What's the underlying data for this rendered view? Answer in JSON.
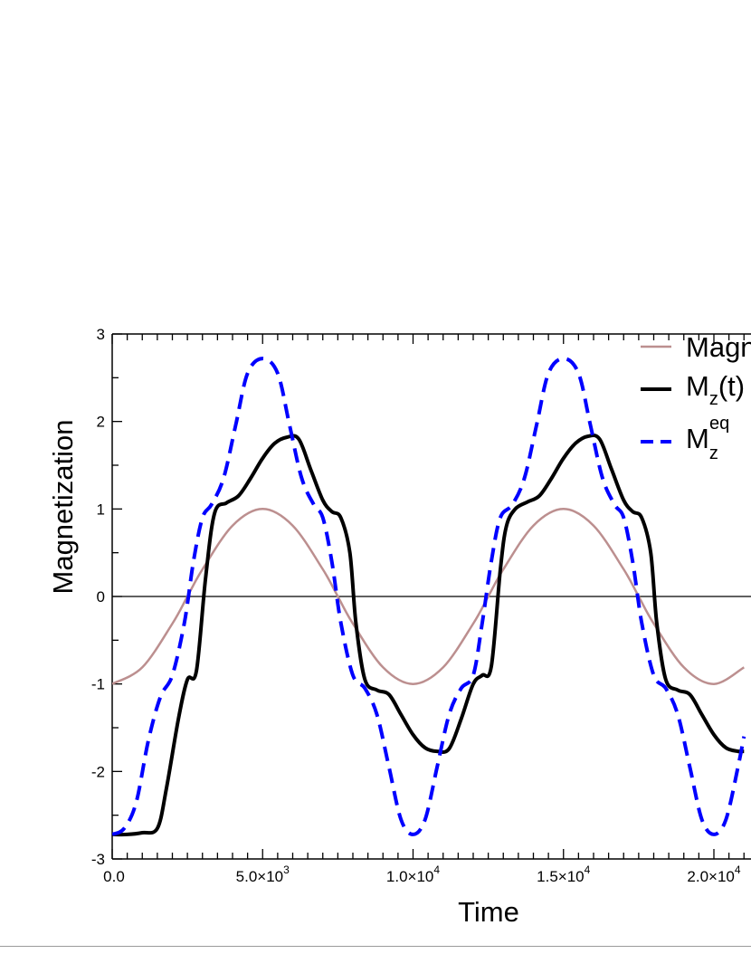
{
  "chart_data": {
    "type": "line",
    "xlabel": "Time",
    "ylabel": "Magnetization",
    "xlim": [
      0,
      21000
    ],
    "ylim": [
      -3,
      3
    ],
    "x_ticks": [
      {
        "value": 0,
        "label": "0.0",
        "sup": ""
      },
      {
        "value": 5000,
        "label": "5.0×10",
        "sup": "3"
      },
      {
        "value": 10000,
        "label": "1.0×10",
        "sup": "4"
      },
      {
        "value": 15000,
        "label": "1.5×10",
        "sup": "4"
      },
      {
        "value": 20000,
        "label": "2.0×10",
        "sup": "4"
      }
    ],
    "y_ticks": [
      {
        "value": -3,
        "label": "-3"
      },
      {
        "value": -2,
        "label": "-2"
      },
      {
        "value": -1,
        "label": "-1"
      },
      {
        "value": 0,
        "label": "0"
      },
      {
        "value": 1,
        "label": "1"
      },
      {
        "value": 2,
        "label": "2"
      },
      {
        "value": 3,
        "label": "3"
      }
    ],
    "zero_line": true,
    "legend_position": "top-right (clipped)",
    "series": [
      {
        "name": "Magn",
        "color": "#bc8f8f",
        "style": "solid-thin",
        "x": [
          0,
          1000,
          2000,
          2500,
          3000,
          4000,
          5000,
          6000,
          7000,
          7500,
          8000,
          9000,
          10000,
          11000,
          12000,
          12500,
          13000,
          14000,
          15000,
          16000,
          17000,
          17500,
          18000,
          19000,
          20000,
          21000
        ],
        "y": [
          -1,
          -0.81,
          -0.31,
          0,
          0.31,
          0.81,
          1,
          0.81,
          0.31,
          0,
          -0.31,
          -0.81,
          -1,
          -0.81,
          -0.31,
          0,
          0.31,
          0.81,
          1,
          0.81,
          0.31,
          0,
          -0.31,
          -0.81,
          -1,
          -0.81
        ]
      },
      {
        "name": "M_z(t)",
        "legend_main": "M",
        "legend_sub": "z",
        "legend_rest": "(t)",
        "color": "#000000",
        "style": "solid-thick",
        "x": [
          0,
          500,
          1000,
          1500,
          1800,
          2200,
          2500,
          2800,
          3100,
          3400,
          3800,
          4200,
          4600,
          5000,
          5400,
          5800,
          6200,
          6600,
          7000,
          7300,
          7600,
          7900,
          8100,
          8400,
          8800,
          9200,
          9600,
          10000,
          10400,
          10800,
          11200,
          11600,
          12000,
          12300,
          12600,
          12900,
          13100,
          13400,
          13800,
          14200,
          14600,
          15000,
          15400,
          15800,
          16200,
          16600,
          17000,
          17300,
          17600,
          17900,
          18100,
          18400,
          18800,
          19200,
          19600,
          20000,
          20400,
          20800,
          21000
        ],
        "y": [
          -2.72,
          -2.72,
          -2.7,
          -2.65,
          -2.2,
          -1.4,
          -0.95,
          -0.85,
          0.2,
          0.95,
          1.07,
          1.15,
          1.35,
          1.58,
          1.75,
          1.82,
          1.8,
          1.45,
          1.1,
          0.97,
          0.9,
          0.5,
          -0.3,
          -0.95,
          -1.07,
          -1.12,
          -1.35,
          -1.58,
          -1.73,
          -1.77,
          -1.74,
          -1.4,
          -1.0,
          -0.9,
          -0.8,
          0.3,
          0.8,
          1.0,
          1.08,
          1.15,
          1.35,
          1.58,
          1.75,
          1.83,
          1.8,
          1.45,
          1.1,
          0.97,
          0.9,
          0.5,
          -0.3,
          -0.95,
          -1.07,
          -1.12,
          -1.35,
          -1.58,
          -1.73,
          -1.77,
          -1.77
        ]
      },
      {
        "name": "M_z^eq",
        "legend_main": "M",
        "legend_sub": "z",
        "legend_sup": "eq",
        "color": "#0000ff",
        "style": "dashed-thick",
        "x": [
          0,
          400,
          800,
          1200,
          1600,
          2000,
          2400,
          2700,
          3000,
          3300,
          3700,
          4100,
          4500,
          5000,
          5500,
          5900,
          6300,
          6700,
          7000,
          7300,
          7600,
          8000,
          8400,
          8800,
          9200,
          9600,
          10000,
          10400,
          10800,
          11200,
          11600,
          12000,
          12300,
          12600,
          12900,
          13300,
          13700,
          14100,
          14500,
          15000,
          15500,
          15900,
          16300,
          16700,
          17000,
          17300,
          17600,
          18000,
          18400,
          18800,
          19200,
          19600,
          20000,
          20400,
          20800,
          21000
        ],
        "y": [
          -2.72,
          -2.65,
          -2.35,
          -1.65,
          -1.15,
          -0.9,
          -0.3,
          0.4,
          0.9,
          1.05,
          1.35,
          1.95,
          2.55,
          2.72,
          2.55,
          1.95,
          1.35,
          1.05,
          0.9,
          0.4,
          -0.3,
          -0.9,
          -1.05,
          -1.35,
          -1.95,
          -2.55,
          -2.72,
          -2.55,
          -1.95,
          -1.35,
          -1.05,
          -0.9,
          -0.3,
          0.4,
          0.9,
          1.05,
          1.35,
          1.95,
          2.55,
          2.72,
          2.55,
          1.95,
          1.35,
          1.05,
          0.9,
          0.4,
          -0.3,
          -0.9,
          -1.05,
          -1.35,
          -1.95,
          -2.55,
          -2.72,
          -2.55,
          -1.95,
          -1.6
        ]
      }
    ]
  }
}
